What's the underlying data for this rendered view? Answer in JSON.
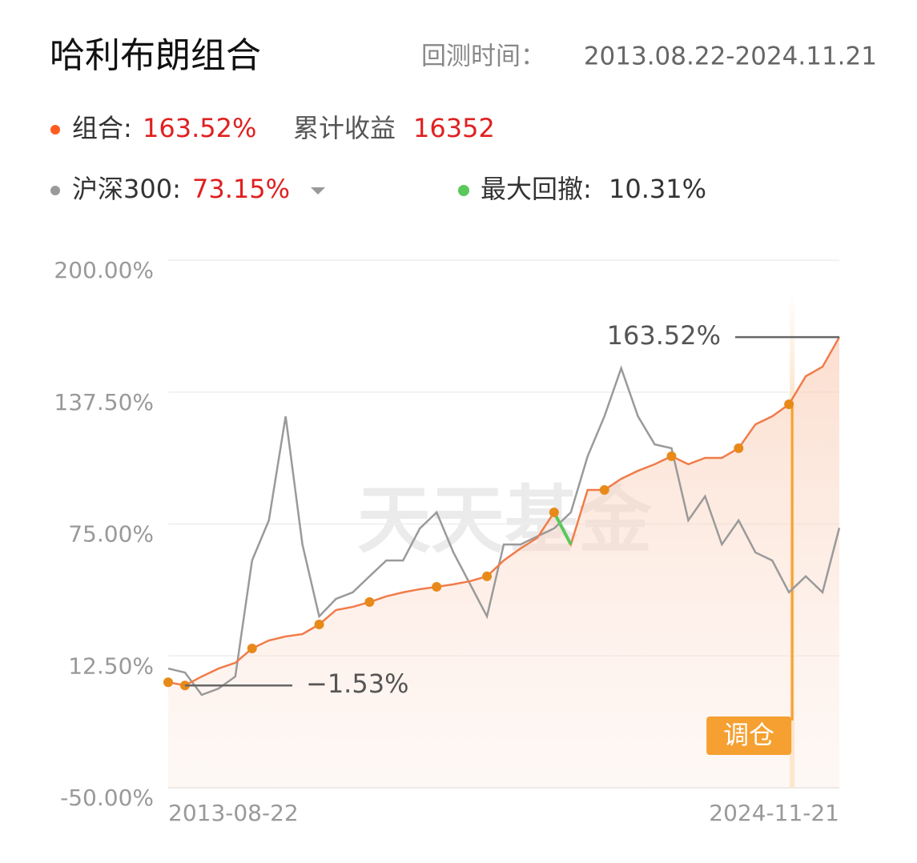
{
  "header": {
    "title": "哈利布朗组合",
    "period_label": "回测时间：",
    "period": "2013.08.22-2024.11.21"
  },
  "stats": [
    {
      "name": "组合:",
      "value": "163.52%"
    },
    {
      "name": "累计收益",
      "value": "16352"
    },
    {
      "name": "沪深300:",
      "value": "73.15%"
    },
    {
      "name": "最大回撤:",
      "value": "10.31%"
    }
  ],
  "chart_data": {
    "type": "line",
    "categories": [
      "2013-08-22",
      null,
      null,
      null,
      null,
      null,
      null,
      null,
      null,
      null,
      null,
      null,
      null,
      null,
      null,
      null,
      null,
      null,
      null,
      null,
      null,
      null,
      null,
      null,
      null,
      null,
      null,
      null,
      null,
      null,
      null,
      null,
      null,
      null,
      null,
      null,
      null,
      null,
      null,
      null,
      "2024-11-21"
    ],
    "series": [
      {
        "name": "组合",
        "color": "#f07c4a",
        "values": [
          0,
          -1.53,
          2.7,
          6.5,
          9.2,
          16,
          19.8,
          21.7,
          22.8,
          27.4,
          34.2,
          35.7,
          38,
          40.7,
          42.6,
          44.1,
          45.2,
          46.4,
          47.9,
          50.2,
          57.7,
          63.4,
          68.4,
          80.5,
          65.3,
          91.1,
          91.1,
          96.4,
          100.2,
          103.3,
          107.1,
          103.3,
          106.3,
          106.3,
          110.9,
          122.2,
          126,
          131.7,
          145,
          149.5,
          163.52
        ]
      },
      {
        "name": "沪深300",
        "color": "#9a9a9a",
        "values": [
          6.5,
          4.6,
          -6,
          -3,
          2.7,
          57.7,
          76.7,
          126,
          65.3,
          31.2,
          39.5,
          42.6,
          50.2,
          57.7,
          57.7,
          72.9,
          80.5,
          61.5,
          46.4,
          31.2,
          65.3,
          65.3,
          69.1,
          72.9,
          80.5,
          107.1,
          126,
          148.8,
          126,
          112.7,
          110.9,
          76.7,
          88.1,
          65.3,
          76.7,
          61.5,
          57.7,
          42.6,
          50.2,
          42.6,
          73.15
        ]
      }
    ],
    "drawdown_color": "#5ac85a",
    "ylim": [
      -50,
      200
    ],
    "yticks": [
      {
        "value": -50,
        "label": "-50.00%"
      },
      {
        "value": 12.5,
        "label": "12.50%"
      },
      {
        "value": 75,
        "label": "75.00%"
      },
      {
        "value": 137.5,
        "label": "137.50%"
      },
      {
        "value": 200,
        "label": "200.00%"
      }
    ],
    "grid": true,
    "max_label": "163.52%",
    "min_label": "−1.53%",
    "rebalance_label": "调仓",
    "watermark": "天天基金"
  }
}
